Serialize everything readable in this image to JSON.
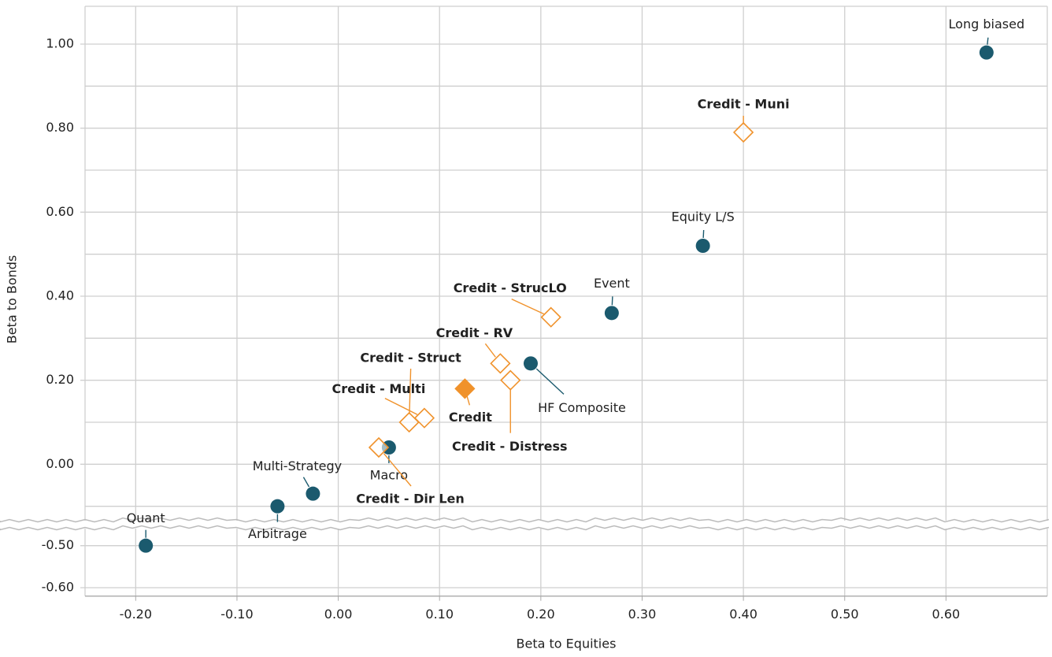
{
  "chart_data": {
    "type": "scatter",
    "x_label": "Beta to Equities",
    "y_label": "Beta to Bonds",
    "xlim": [
      -0.25,
      0.7
    ],
    "ylim": [
      -0.62,
      1.09
    ],
    "ybreak": [
      -0.45,
      -0.14
    ],
    "grid": true,
    "xticks": [
      {
        "value": -0.2,
        "label": "-0.20"
      },
      {
        "value": -0.1,
        "label": "-0.10"
      },
      {
        "value": 0,
        "label": "0.00"
      },
      {
        "value": 0.1,
        "label": "0.10"
      },
      {
        "value": 0.2,
        "label": "0.20"
      },
      {
        "value": 0.3,
        "label": "0.30"
      },
      {
        "value": 0.4,
        "label": "0.40"
      },
      {
        "value": 0.5,
        "label": "0.50"
      },
      {
        "value": 0.6,
        "label": "0.60"
      }
    ],
    "yticks": [
      {
        "value": 1,
        "label": "1.00"
      },
      {
        "value": 0.8,
        "label": "0.80"
      },
      {
        "value": 0.6,
        "label": "0.60"
      },
      {
        "value": 0.4,
        "label": "0.40"
      },
      {
        "value": 0.2,
        "label": "0.20"
      },
      {
        "value": 0,
        "label": "0.00"
      },
      {
        "value": -0.5,
        "label": "-0.50"
      },
      {
        "value": -0.6,
        "label": "-0.60"
      }
    ],
    "ygrid": [
      0.9,
      0.7,
      0.5,
      0.3,
      0.1,
      -0.1
    ],
    "series": [
      {
        "color": "#1b5a6e",
        "marker": "circle",
        "bold": false,
        "labels": [
          "Long biased",
          "Equity L/S",
          "Event",
          "HF Composite",
          "Macro",
          "Multi-Strategy",
          "Arbitrage",
          "Quant"
        ],
        "x": [
          0.64,
          0.36,
          0.27,
          0.19,
          0.05,
          -0.025,
          -0.06,
          -0.19
        ],
        "values": [
          0.98,
          0.52,
          0.36,
          0.24,
          0.04,
          -0.07,
          -0.1,
          -0.5
        ]
      },
      {
        "color": "#f0922b",
        "marker": "diamond-open",
        "bold": true,
        "labels": [
          "Credit - Muni",
          "Credit - StrucLO",
          "Credit - RV",
          "Credit - Distress",
          "Credit - Struct",
          "Credit - Multi",
          "Credit - Dir Len"
        ],
        "x": [
          0.4,
          0.21,
          0.16,
          0.17,
          0.07,
          0.085,
          0.04
        ],
        "values": [
          0.79,
          0.35,
          0.24,
          0.2,
          0.1,
          0.11,
          0.04
        ]
      },
      {
        "color": "#f0922b",
        "marker": "diamond",
        "bold": true,
        "labels": [
          "Credit"
        ],
        "x": [
          0.125
        ],
        "values": [
          0.18
        ]
      }
    ]
  }
}
